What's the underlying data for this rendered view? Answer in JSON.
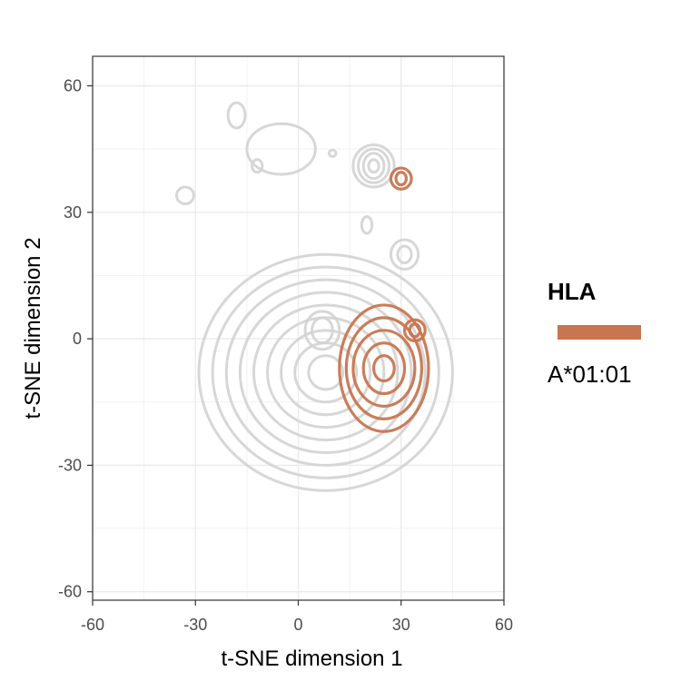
{
  "chart_data": {
    "type": "contour",
    "title": "",
    "xlabel": "t-SNE dimension 1",
    "ylabel": "t-SNE dimension 2",
    "xlim": [
      -60,
      60
    ],
    "ylim": [
      -62,
      67
    ],
    "x_ticks": [
      -60,
      -30,
      0,
      30,
      60
    ],
    "y_ticks": [
      -60,
      -30,
      0,
      30,
      60
    ],
    "x_tick_labels": [
      "-60",
      "-30",
      "0",
      "30",
      "60"
    ],
    "y_tick_labels": [
      "-60",
      "-30",
      "0",
      "30",
      "60"
    ],
    "grid": true,
    "legend": {
      "title": "HLA",
      "position": "right",
      "entries": [
        {
          "label": "A*01:01",
          "color": "#c87650"
        }
      ]
    },
    "series": [
      {
        "name": "background",
        "color": "#d3d3d3",
        "contours": [
          {
            "center": [
              8,
              -8
            ],
            "rx": [
              5,
              9,
              13,
              17,
              21,
              25,
              29,
              33,
              37
            ],
            "ry": [
              4,
              7,
              10,
              13,
              16,
              19,
              22,
              25,
              28
            ]
          },
          {
            "center": [
              7,
              2
            ],
            "rx": [
              3,
              5
            ],
            "ry": [
              3,
              4.5
            ]
          },
          {
            "center": [
              22,
              41
            ],
            "rx": [
              1.5,
              3,
              4.5,
              6
            ],
            "ry": [
              1.5,
              3,
              4,
              5
            ]
          },
          {
            "center": [
              31,
              20
            ],
            "rx": [
              2,
              4
            ],
            "ry": [
              2,
              3.5
            ]
          },
          {
            "center": [
              20,
              27
            ],
            "rx": [
              1.5
            ],
            "ry": [
              2
            ]
          },
          {
            "center": [
              10,
              44
            ],
            "rx": [
              1
            ],
            "ry": [
              0.8
            ]
          },
          {
            "center": [
              -12,
              41
            ],
            "rx": [
              1.5
            ],
            "ry": [
              1.5
            ]
          },
          {
            "center": [
              -18,
              53
            ],
            "rx": [
              2.5
            ],
            "ry": [
              3
            ]
          },
          {
            "center": [
              -33,
              34
            ],
            "rx": [
              2.5
            ],
            "ry": [
              2
            ]
          },
          {
            "center": [
              -5,
              45
            ],
            "rx": [
              10
            ],
            "ry": [
              6
            ]
          }
        ]
      },
      {
        "name": "A*01:01",
        "color": "#c87650",
        "contours": [
          {
            "center": [
              25,
              -7
            ],
            "rx": [
              3,
              6,
              9,
              11,
              13
            ],
            "ry": [
              3,
              6,
              9,
              12,
              15
            ]
          },
          {
            "center": [
              34,
              2
            ],
            "rx": [
              1.5,
              3
            ],
            "ry": [
              1.5,
              2.5
            ]
          },
          {
            "center": [
              30,
              38
            ],
            "rx": [
              1.5,
              3
            ],
            "ry": [
              1.5,
              2.5
            ]
          }
        ]
      }
    ]
  }
}
